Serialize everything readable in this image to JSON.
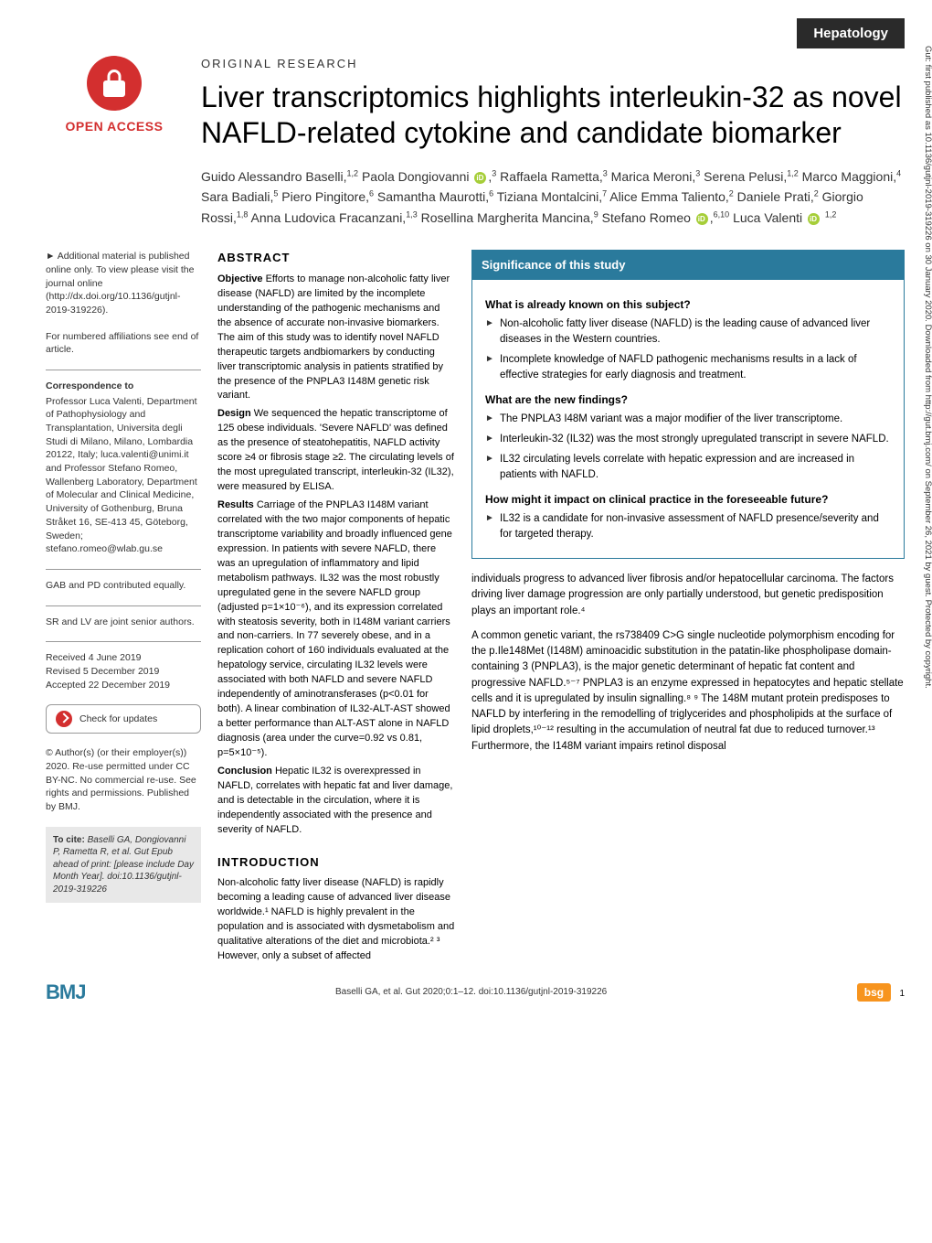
{
  "header": {
    "section": "Hepatology"
  },
  "open_access": {
    "label": "OPEN ACCESS"
  },
  "article": {
    "type": "Original research",
    "title": "Liver transcriptomics highlights interleukin-32 as novel NAFLD-related cytokine and candidate biomarker",
    "authors_html": "Guido Alessandro Baselli,<sup>1,2</sup> Paola Dongiovanni <ORCID>,<sup>3</sup> Raffaela Rametta,<sup>3</sup> Marica Meroni,<sup>3</sup> Serena Pelusi,<sup>1,2</sup> Marco Maggioni,<sup>4</sup> Sara Badiali,<sup>5</sup> Piero Pingitore,<sup>6</sup> Samantha Maurotti,<sup>6</sup> Tiziana Montalcini,<sup>7</sup> Alice Emma Taliento,<sup>2</sup> Daniele Prati,<sup>2</sup> Giorgio Rossi,<sup>1,8</sup> Anna Ludovica Fracanzani,<sup>1,3</sup> Rosellina Margherita Mancina,<sup>9</sup> Stefano Romeo <ORCID>,<sup>6,10</sup> Luca Valenti <ORCID> <sup>1,2</sup>"
  },
  "sidebar": {
    "supplementary": "► Additional material is published online only. To view please visit the journal online (http://dx.doi.org/10.1136/gutjnl-2019-319226).",
    "affiliations": "For numbered affiliations see end of article.",
    "correspondence_heading": "Correspondence to",
    "correspondence": "Professor Luca Valenti, Department of Pathophysiology and Transplantation, Universita degli Studi di Milano, Milano, Lombardia 20122, Italy; luca.valenti@unimi.it and Professor Stefano Romeo, Wallenberg Laboratory, Department of Molecular and Clinical Medicine, University of Gothenburg, Bruna Stråket 16, SE-413 45, Göteborg, Sweden; stefano.romeo@wlab.gu.se",
    "contrib1": "GAB and PD contributed equally.",
    "contrib2": "SR and LV are joint senior authors.",
    "dates": "Received 4 June 2019\nRevised 5 December 2019\nAccepted 22 December 2019",
    "check_updates": "Check for updates",
    "license": "© Author(s) (or their employer(s)) 2020. Re-use permitted under CC BY-NC. No commercial re-use. See rights and permissions. Published by BMJ.",
    "cite_heading": "To cite:",
    "cite": "Baselli GA, Dongiovanni P, Rametta R, et al. Gut Epub ahead of print: [please include Day Month Year]. doi:10.1136/gutjnl-2019-319226"
  },
  "abstract": {
    "heading": "ABSTRACT",
    "objective_label": "Objective",
    "objective": "Efforts to manage non-alcoholic fatty liver disease (NAFLD) are limited by the incomplete understanding of the pathogenic mechanisms and the absence of accurate non-invasive biomarkers. The aim of this study was to identify novel NAFLD therapeutic targets andbiomarkers by conducting liver transcriptomic analysis in patients stratified by the presence of the PNPLA3 I148M genetic risk variant.",
    "design_label": "Design",
    "design": "We sequenced the hepatic transcriptome of 125 obese individuals. 'Severe NAFLD' was defined as the presence of steatohepatitis, NAFLD activity score ≥4 or fibrosis stage ≥2. The circulating levels of the most upregulated transcript, interleukin-32 (IL32), were measured by ELISA.",
    "results_label": "Results",
    "results": "Carriage of the PNPLA3 I148M variant correlated with the two major components of hepatic transcriptome variability and broadly influenced gene expression. In patients with severe NAFLD, there was an upregulation of inflammatory and lipid metabolism pathways. IL32 was the most robustly upregulated gene in the severe NAFLD group (adjusted p=1×10⁻⁶), and its expression correlated with steatosis severity, both in I148M variant carriers and non-carriers. In 77 severely obese, and in a replication cohort of 160 individuals evaluated at the hepatology service, circulating IL32 levels were associated with both NAFLD and severe NAFLD independently of aminotransferases (p<0.01 for both). A linear combination of IL32-ALT-AST showed a better performance than ALT-AST alone in NAFLD diagnosis (area under the curve=0.92 vs 0.81, p=5×10⁻⁵).",
    "conclusion_label": "Conclusion",
    "conclusion": "Hepatic IL32 is overexpressed in NAFLD, correlates with hepatic fat and liver damage, and is detectable in the circulation, where it is independently associated with the presence and severity of NAFLD."
  },
  "introduction": {
    "heading": "INTRODUCTION",
    "p1": "Non-alcoholic fatty liver disease (NAFLD) is rapidly becoming a leading cause of advanced liver disease worldwide.¹ NAFLD is highly prevalent in the population and is associated with dysmetabolism and qualitative alterations of the diet and microbiota.² ³ However, only a subset of affected"
  },
  "significance": {
    "header": "Significance of this study",
    "q1": "What is already known on this subject?",
    "q1_items": [
      "Non-alcoholic fatty liver disease (NAFLD) is the leading cause of advanced liver diseases in the Western countries.",
      "Incomplete knowledge of NAFLD pathogenic mechanisms results in a lack of effective strategies for early diagnosis and treatment."
    ],
    "q2": "What are the new findings?",
    "q2_items": [
      "The PNPLA3 I48M variant was a major modifier of the liver transcriptome.",
      "Interleukin-32 (IL32) was the most strongly upregulated transcript in severe NAFLD.",
      "IL32 circulating levels correlate with hepatic expression and are increased in patients with NAFLD."
    ],
    "q3": "How might it impact on clinical practice in the foreseeable future?",
    "q3_items": [
      "IL32 is a candidate for non-invasive assessment of NAFLD presence/severity and for targeted therapy."
    ]
  },
  "right_col_text": {
    "p1": "individuals progress to advanced liver fibrosis and/or hepatocellular carcinoma. The factors driving liver damage progression are only partially understood, but genetic predisposition plays an important role.⁴",
    "p2": "A common genetic variant, the rs738409 C>G single nucleotide polymorphism encoding for the p.Ile148Met (I148M) aminoacidic substitution in the patatin-like phospholipase domain-containing 3 (PNPLA3), is the major genetic determinant of hepatic fat content and progressive NAFLD.⁵⁻⁷ PNPLA3 is an enzyme expressed in hepatocytes and hepatic stellate cells and it is upregulated by insulin signalling.⁸ ⁹ The 148M mutant protein predisposes to NAFLD by interfering in the remodelling of triglycerides and phospholipids at the surface of lipid droplets,¹⁰⁻¹² resulting in the accumulation of neutral fat due to reduced turnover.¹³ Furthermore, the I148M variant impairs retinol disposal"
  },
  "footer": {
    "bmj": "BMJ",
    "citation": "Baselli GA, et al. Gut 2020;0:1–12. doi:10.1136/gutjnl-2019-319226",
    "page": "1",
    "bsg": "bsg"
  },
  "side_note": "Gut: first published as 10.1136/gutjnl-2019-319226 on 30 January 2020. Downloaded from http://gut.bmj.com/ on September 26, 2021 by guest. Protected by copyright.",
  "colors": {
    "brand_red": "#d32f2f",
    "brand_teal": "#2a7a9c",
    "orange": "#f7941e",
    "dark": "#2a2a2a"
  }
}
